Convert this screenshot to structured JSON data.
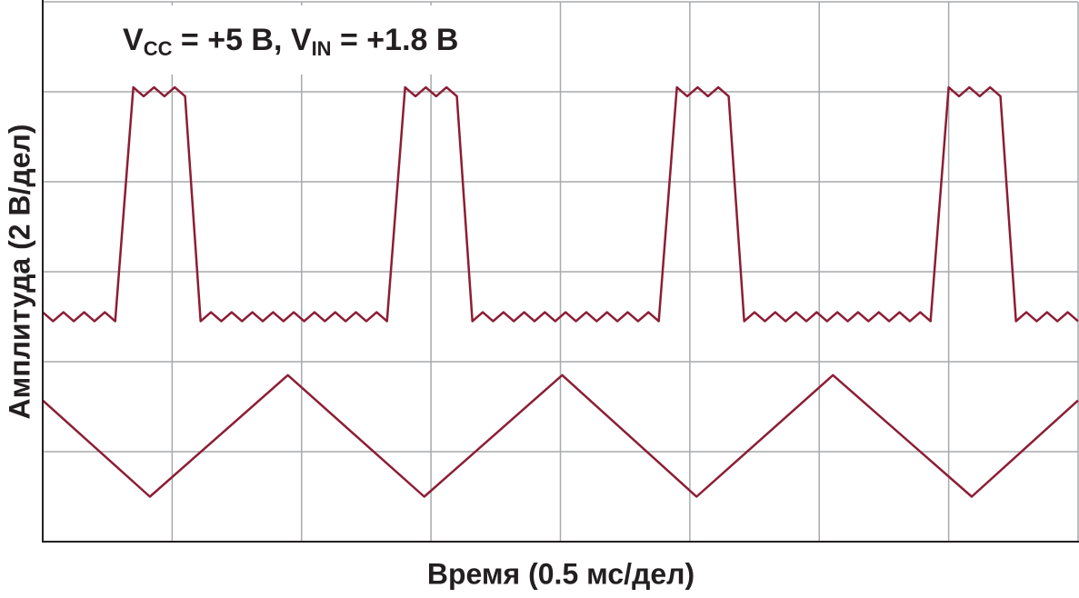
{
  "chart_data": {
    "type": "line",
    "title": [
      "V",
      "CC",
      " = +5 В, V",
      "IN",
      " = +1.8 В"
    ],
    "xlabel": "Время (0.5 мс/дел)",
    "ylabel": "Амплитуда (2 В/дел)",
    "xlim": [
      0,
      4
    ],
    "xticks": [
      0,
      0.5,
      1,
      1.5,
      2,
      2.5,
      3,
      3.5,
      4
    ],
    "ylim": [
      -5,
      7
    ],
    "yticks": [
      -5,
      -3,
      -1,
      1,
      3,
      5,
      7
    ],
    "grid": true,
    "series": [
      {
        "color": "#8c1d35",
        "x": [
          0,
          0.04,
          0.08,
          0.12,
          0.16,
          0.2,
          0.24,
          0.28,
          0.35,
          0.39,
          0.43,
          0.47,
          0.51,
          0.55,
          0.61,
          0.65,
          0.69,
          0.73,
          0.77,
          0.81,
          0.85,
          0.89,
          0.93,
          0.97,
          1.01,
          1.05,
          1.09,
          1.13,
          1.17,
          1.21,
          1.25,
          1.29,
          1.33,
          1.4,
          1.44,
          1.48,
          1.52,
          1.56,
          1.6,
          1.66,
          1.7,
          1.74,
          1.78,
          1.82,
          1.86,
          1.9,
          1.94,
          1.98,
          2.02,
          2.06,
          2.1,
          2.14,
          2.18,
          2.22,
          2.26,
          2.3,
          2.34,
          2.38,
          2.45,
          2.49,
          2.53,
          2.57,
          2.61,
          2.65,
          2.71,
          2.75,
          2.79,
          2.83,
          2.87,
          2.91,
          2.95,
          2.99,
          3.03,
          3.07,
          3.11,
          3.15,
          3.19,
          3.23,
          3.27,
          3.31,
          3.35,
          3.39,
          3.43,
          3.5,
          3.54,
          3.58,
          3.62,
          3.66,
          3.7,
          3.76,
          3.8,
          3.84,
          3.88,
          3.92,
          3.96,
          4
        ],
        "values": [
          0.1,
          -0.1,
          0.1,
          -0.1,
          0.1,
          -0.1,
          0.1,
          -0.1,
          5.1,
          4.9,
          5.1,
          4.9,
          5.1,
          4.9,
          -0.1,
          0.1,
          -0.1,
          0.1,
          -0.1,
          0.1,
          -0.1,
          0.1,
          -0.1,
          0.1,
          -0.1,
          0.1,
          -0.1,
          0.1,
          -0.1,
          0.1,
          -0.1,
          0.1,
          -0.1,
          5.1,
          4.9,
          5.1,
          4.9,
          5.1,
          4.9,
          -0.1,
          0.1,
          -0.1,
          0.1,
          -0.1,
          0.1,
          -0.1,
          0.1,
          -0.1,
          0.1,
          -0.1,
          0.1,
          -0.1,
          0.1,
          -0.1,
          0.1,
          -0.1,
          0.1,
          -0.1,
          5.1,
          4.9,
          5.1,
          4.9,
          5.1,
          4.9,
          -0.1,
          0.1,
          -0.1,
          0.1,
          -0.1,
          0.1,
          -0.1,
          0.1,
          -0.1,
          0.1,
          -0.1,
          0.1,
          -0.1,
          0.1,
          -0.1,
          0.1,
          -0.1,
          0.1,
          -0.1,
          5.1,
          4.9,
          5.1,
          4.9,
          5.1,
          4.9,
          -0.1,
          0.1,
          -0.1,
          0.1,
          -0.1,
          0.1,
          -0.1
        ]
      },
      {
        "color": "#8c1d35",
        "x": [
          0,
          0.414,
          0.947,
          1.474,
          2.007,
          2.526,
          3.053,
          3.589,
          4
        ],
        "values": [
          -1.86,
          -4,
          -1.3,
          -4,
          -1.3,
          -4,
          -1.3,
          -4,
          -1.86
        ]
      }
    ]
  }
}
